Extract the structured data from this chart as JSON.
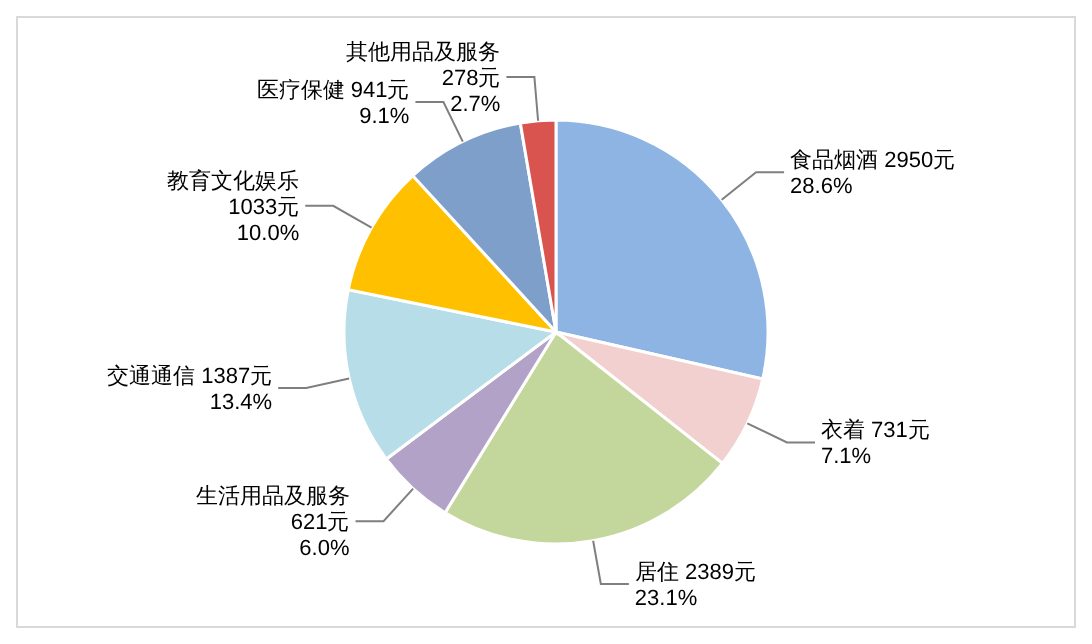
{
  "chart_data": {
    "type": "pie",
    "categories": [
      "食品烟酒",
      "衣着",
      "居住",
      "生活用品及服务",
      "交通通信",
      "教育文化娱乐",
      "医疗保健",
      "其他用品及服务"
    ],
    "values": [
      2950,
      731,
      2389,
      621,
      1387,
      1033,
      941,
      278
    ],
    "value_labels": [
      "2950元\n28.6%",
      "731元\n7.1%",
      "2389元\n23.1%",
      "621元\n6.0%",
      "1387元\n13.4%",
      "1033元\n10.0%",
      "941元\n9.1%",
      "278元\n2.7%"
    ],
    "colors": [
      "#8db4e2",
      "#f2d0cf",
      "#c3d69b",
      "#b3a2c7",
      "#b7dee8",
      "#ffc000",
      "#7f9fcb",
      "#d9534f"
    ],
    "legend": false
  }
}
